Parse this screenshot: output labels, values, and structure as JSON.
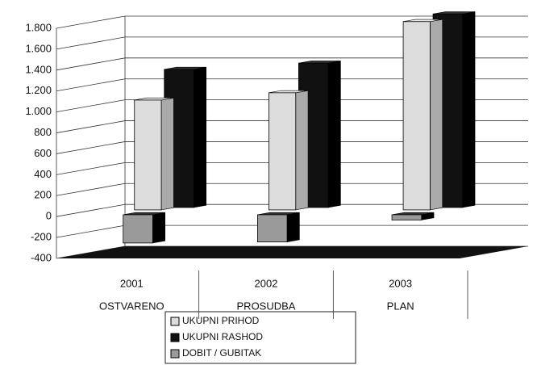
{
  "chart_data": {
    "type": "bar3d",
    "categories": [
      "2001",
      "2002",
      "2003"
    ],
    "subcategories": [
      "OSTVARENO",
      "PROSUDBA",
      "PLAN"
    ],
    "series": [
      {
        "name": "UKUPNI PRIHOD",
        "color": "#dcdcdc",
        "values": [
          1050,
          1120,
          1800
        ]
      },
      {
        "name": "UKUPNI RASHOD",
        "color": "#111111",
        "values": [
          1320,
          1380,
          1850
        ]
      },
      {
        "name": "DOBIT / GUBITAK",
        "color": "#9a9a9a",
        "values": [
          -270,
          -260,
          -50
        ]
      }
    ],
    "ylim": [
      -400,
      1800
    ],
    "yticks": [
      {
        "value": 1800,
        "label": "1.800"
      },
      {
        "value": 1600,
        "label": "1.600"
      },
      {
        "value": 1400,
        "label": "1.400"
      },
      {
        "value": 1200,
        "label": "1.200"
      },
      {
        "value": 1000,
        "label": "1.000"
      },
      800,
      600,
      400,
      200,
      0,
      -200,
      -400
    ],
    "grid": true
  }
}
